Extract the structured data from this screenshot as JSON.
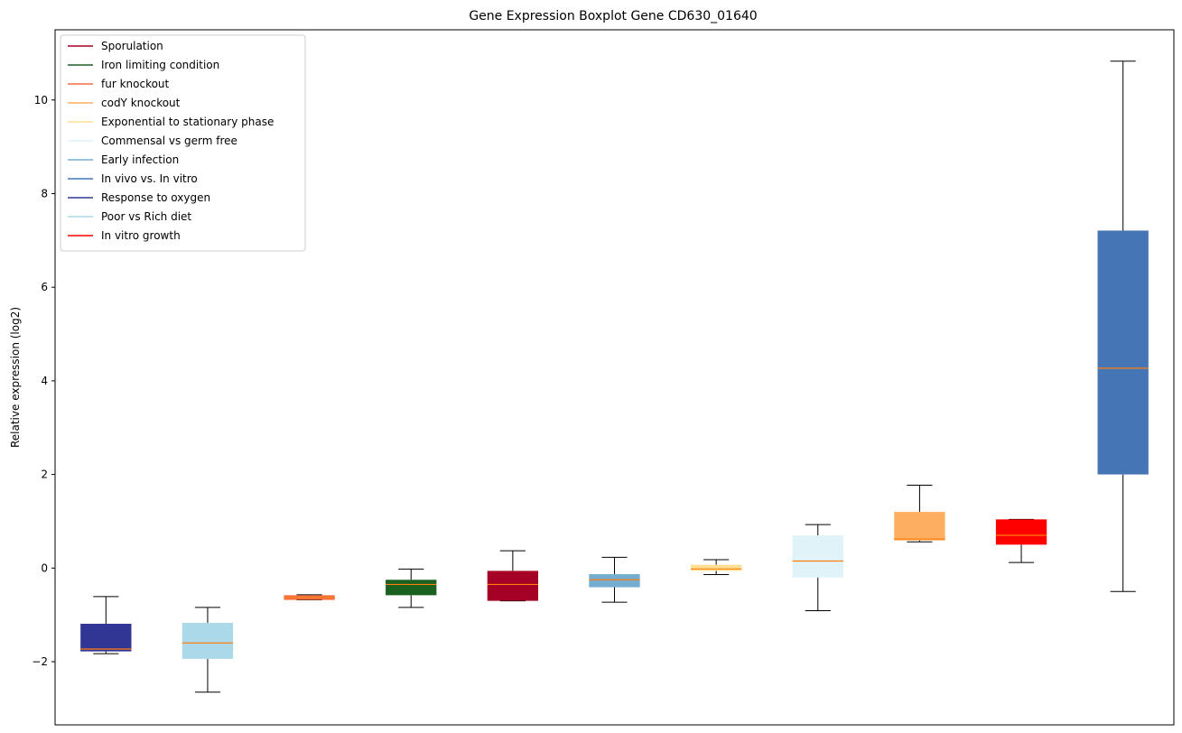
{
  "chart_data": {
    "type": "boxplot",
    "title": "Gene Expression Boxplot Gene CD630_01640",
    "xlabel": "",
    "ylabel": "Relative expression (log2)",
    "ylim": [
      -3.35,
      11.5
    ],
    "yticks": [
      -2,
      0,
      2,
      4,
      6,
      8,
      10
    ],
    "grid": false,
    "legend_position": "upper-left",
    "legend": [
      {
        "label": "Sporulation",
        "color": "#a50026"
      },
      {
        "label": "Iron limiting condition",
        "color": "#1a6120"
      },
      {
        "label": "fur knockout",
        "color": "#f46d43"
      },
      {
        "label": "codY knockout",
        "color": "#fdae61"
      },
      {
        "label": "Exponential to stationary phase",
        "color": "#fee090"
      },
      {
        "label": "Commensal vs germ free",
        "color": "#e0f3f8"
      },
      {
        "label": "Early infection",
        "color": "#74add1"
      },
      {
        "label": "In vivo vs. In vitro",
        "color": "#4575b4"
      },
      {
        "label": "Response to oxygen",
        "color": "#313695"
      },
      {
        "label": "Poor vs Rich diet",
        "color": "#abd9e9"
      },
      {
        "label": "In vitro growth",
        "color": "#ff0000"
      }
    ],
    "boxes": [
      {
        "series": "Response to oxygen",
        "color": "#313695",
        "whislo": -1.83,
        "q1": -1.78,
        "med": -1.73,
        "q3": -1.19,
        "whishi": -0.61
      },
      {
        "series": "Poor vs Rich diet",
        "color": "#abd9e9",
        "whislo": -2.65,
        "q1": -1.94,
        "med": -1.6,
        "q3": -1.17,
        "whishi": -0.84
      },
      {
        "series": "fur knockout",
        "color": "#f46d43",
        "whislo": -0.68,
        "q1": -0.68,
        "med": -0.63,
        "q3": -0.58,
        "whishi": -0.57
      },
      {
        "series": "Iron limiting condition",
        "color": "#1a6120",
        "whislo": -0.84,
        "q1": -0.58,
        "med": -0.35,
        "q3": -0.25,
        "whishi": -0.02
      },
      {
        "series": "Sporulation",
        "color": "#a50026",
        "whislo": -0.7,
        "q1": -0.7,
        "med": -0.35,
        "q3": -0.06,
        "whishi": 0.37
      },
      {
        "series": "Early infection",
        "color": "#74add1",
        "whislo": -0.73,
        "q1": -0.41,
        "med": -0.25,
        "q3": -0.13,
        "whishi": 0.23
      },
      {
        "series": "Exponential to stationary phase",
        "color": "#fee090",
        "whislo": -0.14,
        "q1": -0.06,
        "med": -0.02,
        "q3": 0.07,
        "whishi": 0.18
      },
      {
        "series": "Commensal vs germ free",
        "color": "#e0f3f8",
        "whislo": -0.91,
        "q1": -0.2,
        "med": 0.15,
        "q3": 0.7,
        "whishi": 0.93
      },
      {
        "series": "codY knockout",
        "color": "#fdae61",
        "whislo": 0.56,
        "q1": 0.59,
        "med": 0.62,
        "q3": 1.2,
        "whishi": 1.77
      },
      {
        "series": "In vitro growth",
        "color": "#ff0000",
        "whislo": 0.12,
        "q1": 0.5,
        "med": 0.7,
        "q3": 1.04,
        "whishi": 1.04
      },
      {
        "series": "In vivo vs. In vitro",
        "color": "#4575b4",
        "whislo": -0.5,
        "q1": 2.0,
        "med": 4.27,
        "q3": 7.21,
        "whishi": 10.83
      }
    ],
    "median_color": "#ff7f0e"
  }
}
